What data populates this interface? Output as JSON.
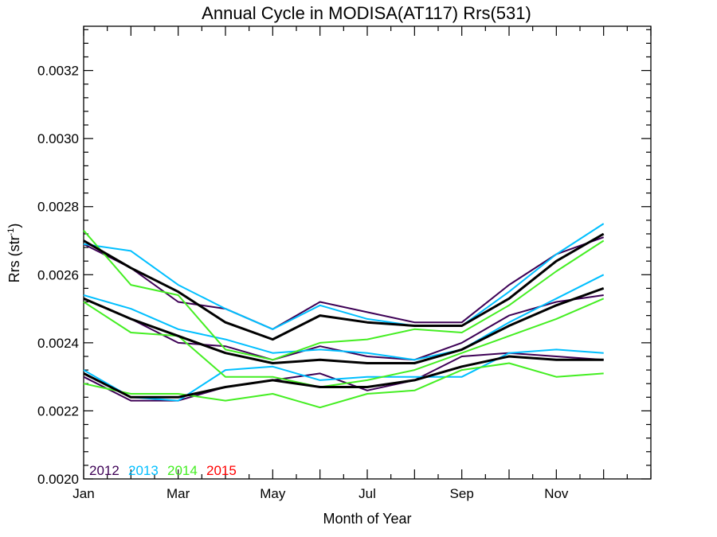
{
  "chart_data": {
    "type": "line",
    "title": "Annual Cycle in MODISA(AT117) Rrs(531)",
    "xlabel": "Month of Year",
    "ylabel": "Rrs (str",
    "ylabel_sup": "-1",
    "ylabel_close": ")",
    "xlim": [
      1,
      13
    ],
    "ylim": [
      0.002,
      0.00333
    ],
    "x_ticks": [
      {
        "value": 1,
        "label": "Jan"
      },
      {
        "value": 3,
        "label": "Mar"
      },
      {
        "value": 5,
        "label": "May"
      },
      {
        "value": 7,
        "label": "Jul"
      },
      {
        "value": 9,
        "label": "Sep"
      },
      {
        "value": 11,
        "label": "Nov"
      }
    ],
    "y_ticks": [
      {
        "value": 0.002,
        "label": "0.0020"
      },
      {
        "value": 0.0022,
        "label": "0.0022"
      },
      {
        "value": 0.0024,
        "label": "0.0024"
      },
      {
        "value": 0.0026,
        "label": "0.0026"
      },
      {
        "value": 0.0028,
        "label": "0.0028"
      },
      {
        "value": 0.003,
        "label": "0.0030"
      },
      {
        "value": 0.0032,
        "label": "0.0032"
      }
    ],
    "x": [
      1,
      2,
      3,
      4,
      5,
      6,
      7,
      8,
      9,
      10,
      11,
      12
    ],
    "legend": [
      {
        "label": "2012",
        "color": "#3d0055"
      },
      {
        "label": "2013",
        "color": "#00bfff"
      },
      {
        "label": "2014",
        "color": "#44ee22"
      },
      {
        "label": "2015",
        "color": "#ff0000"
      }
    ],
    "series": [
      {
        "group": "2012",
        "color": "#3d0055",
        "width": 2,
        "values": [
          0.00269,
          0.00262,
          0.00252,
          0.0025,
          0.00244,
          0.00252,
          0.00249,
          0.00246,
          0.00246,
          0.00257,
          0.00266,
          0.00271
        ]
      },
      {
        "group": "2012",
        "color": "#3d0055",
        "width": 2,
        "values": [
          0.00253,
          0.00247,
          0.0024,
          0.00239,
          0.00235,
          0.00239,
          0.00236,
          0.00235,
          0.0024,
          0.00248,
          0.00252,
          0.00254
        ]
      },
      {
        "group": "2012",
        "color": "#3d0055",
        "width": 2,
        "values": [
          0.0023,
          0.00223,
          0.00223,
          0.00227,
          0.00229,
          0.00231,
          0.00226,
          0.00229,
          0.00236,
          0.00237,
          0.00236,
          0.00235
        ]
      },
      {
        "group": "2013",
        "color": "#00bfff",
        "width": 2,
        "values": [
          0.00269,
          0.00267,
          0.00257,
          0.0025,
          0.00244,
          0.00251,
          0.00247,
          0.00245,
          0.00245,
          0.00255,
          0.00266,
          0.00275
        ]
      },
      {
        "group": "2013",
        "color": "#00bfff",
        "width": 2,
        "values": [
          0.00254,
          0.0025,
          0.00244,
          0.00241,
          0.00237,
          0.00238,
          0.00237,
          0.00235,
          0.00238,
          0.00246,
          0.00253,
          0.0026
        ]
      },
      {
        "group": "2013",
        "color": "#00bfff",
        "width": 2,
        "values": [
          0.00232,
          0.00224,
          0.00223,
          0.00232,
          0.00233,
          0.00229,
          0.0023,
          0.0023,
          0.0023,
          0.00237,
          0.00238,
          0.00237
        ]
      },
      {
        "group": "2014",
        "color": "#44ee22",
        "width": 2,
        "values": [
          0.00273,
          0.00257,
          0.00254,
          0.00238,
          0.00235,
          0.0024,
          0.00241,
          0.00244,
          0.00243,
          0.00251,
          0.00261,
          0.0027
        ]
      },
      {
        "group": "2014",
        "color": "#44ee22",
        "width": 2,
        "values": [
          0.00252,
          0.00243,
          0.00242,
          0.0023,
          0.0023,
          0.00227,
          0.00229,
          0.00232,
          0.00237,
          0.00242,
          0.00247,
          0.00253
        ]
      },
      {
        "group": "2014",
        "color": "#44ee22",
        "width": 2,
        "values": [
          0.00228,
          0.00225,
          0.00225,
          0.00223,
          0.00225,
          0.00221,
          0.00225,
          0.00226,
          0.00232,
          0.00234,
          0.0023,
          0.00231
        ]
      },
      {
        "group": "mean",
        "color": "#000000",
        "width": 3,
        "values": [
          0.0027,
          0.00262,
          0.00255,
          0.00246,
          0.00241,
          0.00248,
          0.00246,
          0.00245,
          0.00245,
          0.00253,
          0.00264,
          0.00272
        ]
      },
      {
        "group": "mean",
        "color": "#000000",
        "width": 3,
        "values": [
          0.00253,
          0.00247,
          0.00242,
          0.00237,
          0.00234,
          0.00235,
          0.00234,
          0.00234,
          0.00238,
          0.00245,
          0.00251,
          0.00256
        ]
      },
      {
        "group": "mean",
        "color": "#000000",
        "width": 3,
        "values": [
          0.00231,
          0.00224,
          0.00224,
          0.00227,
          0.00229,
          0.00227,
          0.00227,
          0.00229,
          0.00233,
          0.00236,
          0.00235,
          0.00235
        ]
      }
    ]
  }
}
